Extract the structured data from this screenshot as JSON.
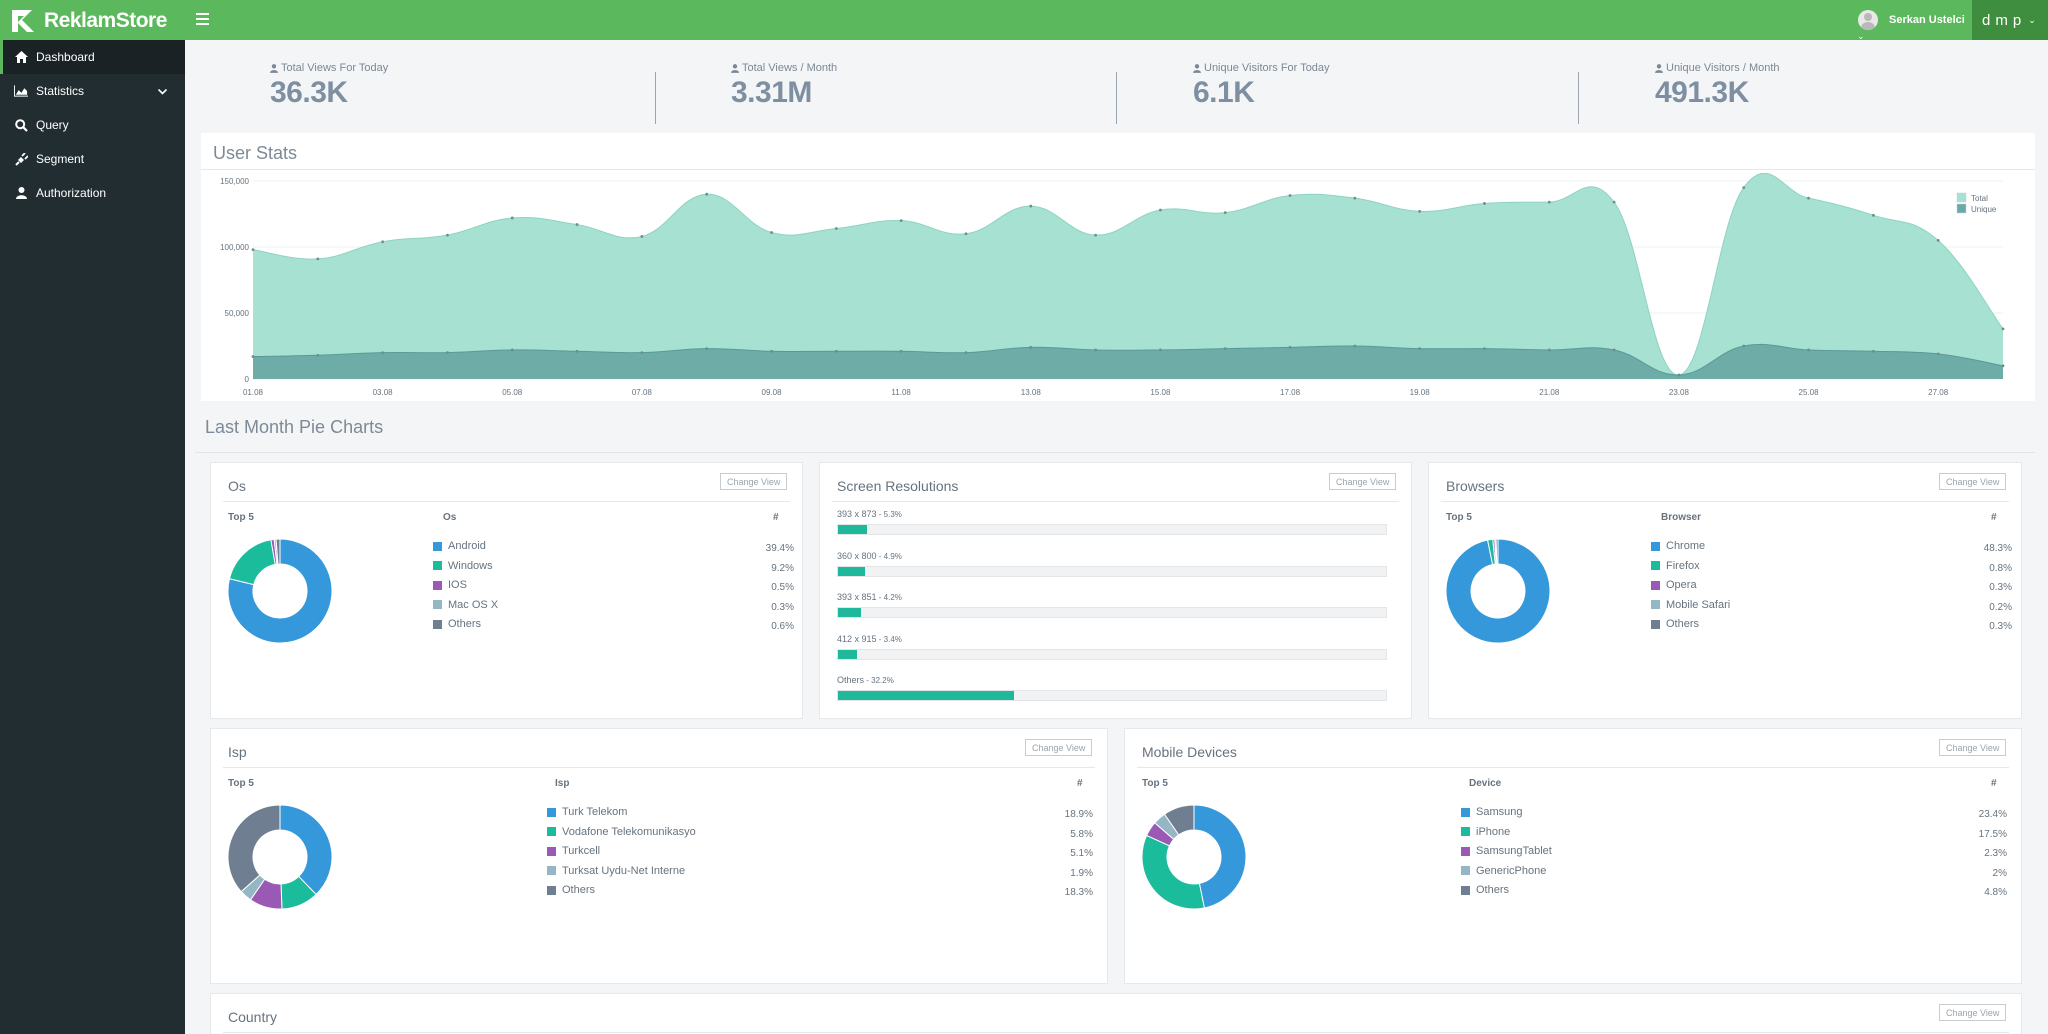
{
  "app": {
    "logo_text": "ReklamStore",
    "user_name": "Serkan Ustelci",
    "brand_switch": "dmp",
    "colors": {
      "topbar": "#5cb85c",
      "sidebar": "#222d32",
      "accent": "#1fb89a",
      "total_area": "#a6e1d1",
      "unique_area": "#6aa9a5"
    }
  },
  "sidebar": {
    "items": [
      {
        "label": "Dashboard",
        "icon": "home-icon",
        "active": true
      },
      {
        "label": "Statistics",
        "icon": "area-chart-icon",
        "has_submenu": true
      },
      {
        "label": "Query",
        "icon": "search-icon"
      },
      {
        "label": "Segment",
        "icon": "plug-icon"
      },
      {
        "label": "Authorization",
        "icon": "user-icon"
      }
    ]
  },
  "stats": [
    {
      "label": "Total Views For Today",
      "value": "36.3K",
      "icon": "user-icon"
    },
    {
      "label": "Total Views / Month",
      "value": "3.31M",
      "icon": "user-icon"
    },
    {
      "label": "Unique Visitors For Today",
      "value": "6.1K",
      "icon": "user-icon"
    },
    {
      "label": "Unique Visitors / Month",
      "value": "491.3K",
      "icon": "user-icon"
    }
  ],
  "user_stats": {
    "title": "User Stats",
    "chart_data": {
      "type": "area",
      "title": "User Stats",
      "x": [
        "01.08",
        "02.08",
        "03.08",
        "04.08",
        "05.08",
        "06.08",
        "07.08",
        "08.08",
        "09.08",
        "10.08",
        "11.08",
        "12.08",
        "13.08",
        "14.08",
        "15.08",
        "16.08",
        "17.08",
        "18.08",
        "19.08",
        "20.08",
        "21.08",
        "22.08",
        "23.08",
        "24.08",
        "25.08",
        "26.08",
        "27.08",
        "28.08"
      ],
      "x_ticks": [
        "01.08",
        "03.08",
        "05.08",
        "07.08",
        "09.08",
        "11.08",
        "13.08",
        "15.08",
        "17.08",
        "19.08",
        "21.08",
        "23.08",
        "25.08",
        "27.08"
      ],
      "y_ticks": [
        "0",
        "50,000",
        "100,000",
        "150,000"
      ],
      "ylim": [
        0,
        150000
      ],
      "series": [
        {
          "name": "Total",
          "color": "#a6e1d1",
          "values": [
            98000,
            91000,
            104000,
            109000,
            122000,
            117000,
            108000,
            140000,
            111000,
            114000,
            120000,
            110000,
            131000,
            109000,
            128000,
            126000,
            139000,
            137000,
            127000,
            133000,
            134000,
            134000,
            3000,
            145000,
            137000,
            124000,
            105000,
            38000
          ]
        },
        {
          "name": "Unique",
          "color": "#6aa9a5",
          "values": [
            17000,
            18000,
            20000,
            20000,
            22000,
            21000,
            20000,
            23000,
            21000,
            21000,
            21000,
            20000,
            24000,
            22000,
            22000,
            23000,
            24000,
            25000,
            23000,
            23000,
            22000,
            22000,
            3000,
            25000,
            22000,
            21000,
            19000,
            10000
          ]
        }
      ],
      "legend_position": "top-right",
      "grid": true
    }
  },
  "section_title": "Last Month Pie Charts",
  "change_view_label": "Change View",
  "os": {
    "title": "Os",
    "top_label": "Top 5",
    "col_label": "Os",
    "hash": "#",
    "items": [
      {
        "label": "Android",
        "pct": "39.4%",
        "value": 39.4,
        "color": "#3498db"
      },
      {
        "label": "Windows",
        "pct": "9.2%",
        "value": 9.2,
        "color": "#1abc9c"
      },
      {
        "label": "IOS",
        "pct": "0.5%",
        "value": 0.5,
        "color": "#9b59b6"
      },
      {
        "label": "Mac OS X",
        "pct": "0.3%",
        "value": 0.3,
        "color": "#95b6c4"
      },
      {
        "label": "Others",
        "pct": "0.6%",
        "value": 0.6,
        "color": "#6f7f91"
      }
    ]
  },
  "resolutions": {
    "title": "Screen Resolutions",
    "items": [
      {
        "label": "393 x 873",
        "pct": "5.3%",
        "value": 5.3
      },
      {
        "label": "360 x 800",
        "pct": "4.9%",
        "value": 4.9
      },
      {
        "label": "393 x 851",
        "pct": "4.2%",
        "value": 4.2
      },
      {
        "label": "412 x 915",
        "pct": "3.4%",
        "value": 3.4
      },
      {
        "label": "Others",
        "pct": "32.2%",
        "value": 32.2
      }
    ]
  },
  "browsers": {
    "title": "Browsers",
    "top_label": "Top 5",
    "col_label": "Browser",
    "hash": "#",
    "items": [
      {
        "label": "Chrome",
        "pct": "48.3%",
        "value": 48.3,
        "color": "#3498db"
      },
      {
        "label": "Firefox",
        "pct": "0.8%",
        "value": 0.8,
        "color": "#1abc9c"
      },
      {
        "label": "Opera",
        "pct": "0.3%",
        "value": 0.3,
        "color": "#9b59b6"
      },
      {
        "label": "Mobile Safari",
        "pct": "0.2%",
        "value": 0.2,
        "color": "#95b6c4"
      },
      {
        "label": "Others",
        "pct": "0.3%",
        "value": 0.3,
        "color": "#6f7f91"
      }
    ]
  },
  "isp": {
    "title": "Isp",
    "top_label": "Top 5",
    "col_label": "Isp",
    "hash": "#",
    "items": [
      {
        "label": "Turk Telekom",
        "pct": "18.9%",
        "value": 18.9,
        "color": "#3498db"
      },
      {
        "label": "Vodafone Telekomunikasyo",
        "pct": "5.8%",
        "value": 5.8,
        "color": "#1abc9c"
      },
      {
        "label": "Turkcell",
        "pct": "5.1%",
        "value": 5.1,
        "color": "#9b59b6"
      },
      {
        "label": "Turksat Uydu-Net Interne",
        "pct": "1.9%",
        "value": 1.9,
        "color": "#95b6c4"
      },
      {
        "label": "Others",
        "pct": "18.3%",
        "value": 18.3,
        "color": "#6f7f91"
      }
    ]
  },
  "mobile": {
    "title": "Mobile Devices",
    "top_label": "Top 5",
    "col_label": "Device",
    "hash": "#",
    "items": [
      {
        "label": "Samsung",
        "pct": "23.4%",
        "value": 23.4,
        "color": "#3498db"
      },
      {
        "label": "iPhone",
        "pct": "17.5%",
        "value": 17.5,
        "color": "#1abc9c"
      },
      {
        "label": "SamsungTablet",
        "pct": "2.3%",
        "value": 2.3,
        "color": "#9b59b6"
      },
      {
        "label": "GenericPhone",
        "pct": "2%",
        "value": 2,
        "color": "#95b6c4"
      },
      {
        "label": "Others",
        "pct": "4.8%",
        "value": 4.8,
        "color": "#6f7f91"
      }
    ]
  },
  "country": {
    "title": "Country"
  }
}
